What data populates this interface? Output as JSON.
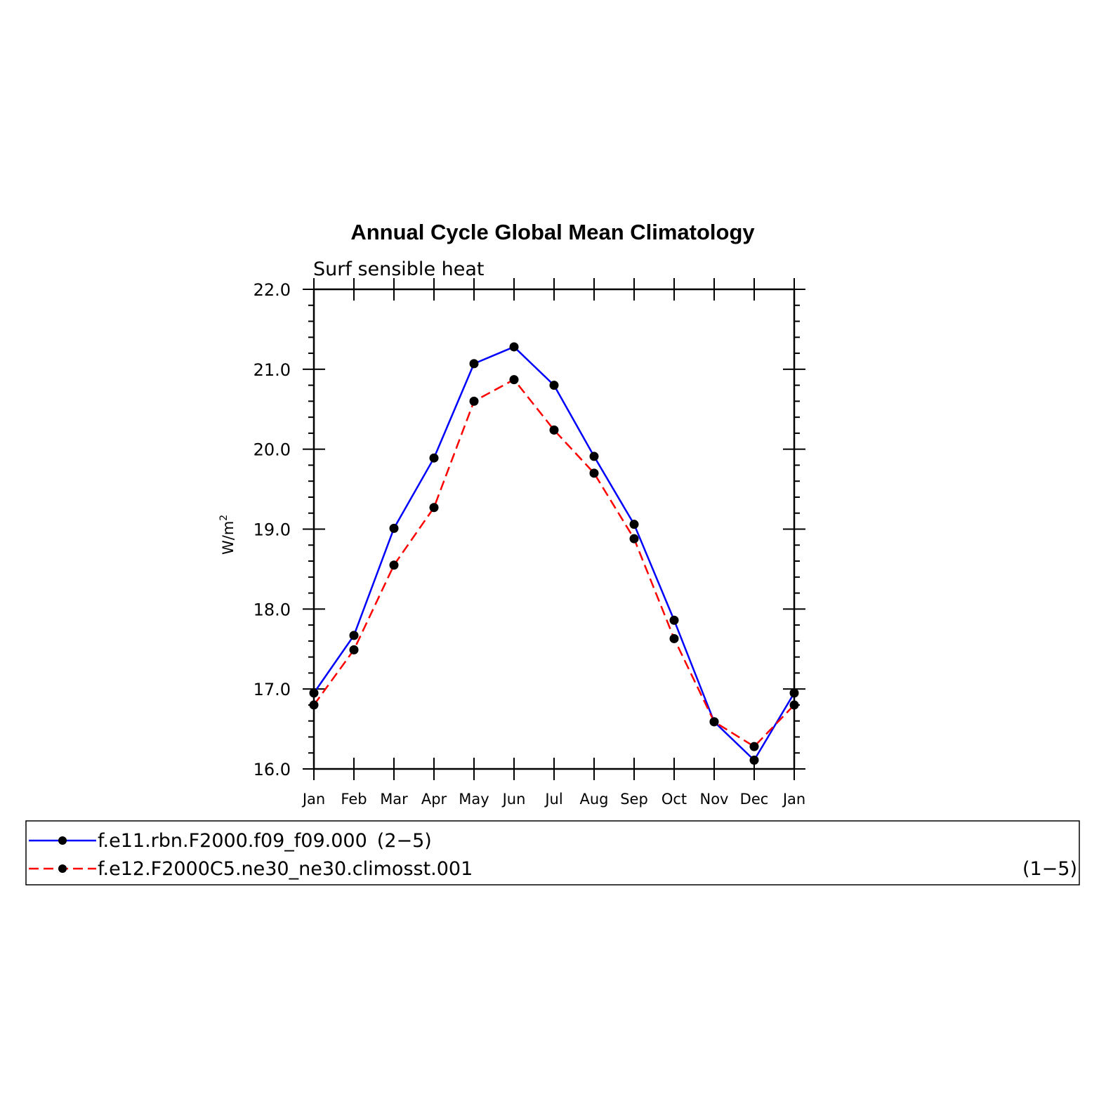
{
  "chart_data": {
    "type": "line",
    "title": "Annual Cycle Global Mean Climatology",
    "subtitle": "Surf sensible heat",
    "ylabel": "W/m",
    "ylabel_sup": "2",
    "ylim": [
      16.0,
      22.0
    ],
    "yticks": [
      "16.0",
      "17.0",
      "18.0",
      "19.0",
      "20.0",
      "21.0",
      "22.0"
    ],
    "categories": [
      "Jan",
      "Feb",
      "Mar",
      "Apr",
      "May",
      "Jun",
      "Jul",
      "Aug",
      "Sep",
      "Oct",
      "Nov",
      "Dec",
      "Jan"
    ],
    "grid": false,
    "legend_position": "bottom",
    "series": [
      {
        "name": "f.e11.rbn.F2000.f09_f09.000",
        "legend_suffix": "(2−5)",
        "color": "#0000ff",
        "dash": "solid",
        "values": [
          16.95,
          17.67,
          19.01,
          19.89,
          21.07,
          21.28,
          20.8,
          19.91,
          19.06,
          17.86,
          16.59,
          16.11,
          16.95
        ]
      },
      {
        "name": "f.e12.F2000C5.ne30_ne30.climosst.001",
        "legend_suffix": "(1−5)",
        "color": "#ff0000",
        "dash": "dashed",
        "values": [
          16.8,
          17.49,
          18.55,
          19.27,
          20.6,
          20.87,
          20.24,
          19.7,
          18.88,
          17.63,
          16.59,
          16.28,
          16.8
        ]
      }
    ]
  }
}
